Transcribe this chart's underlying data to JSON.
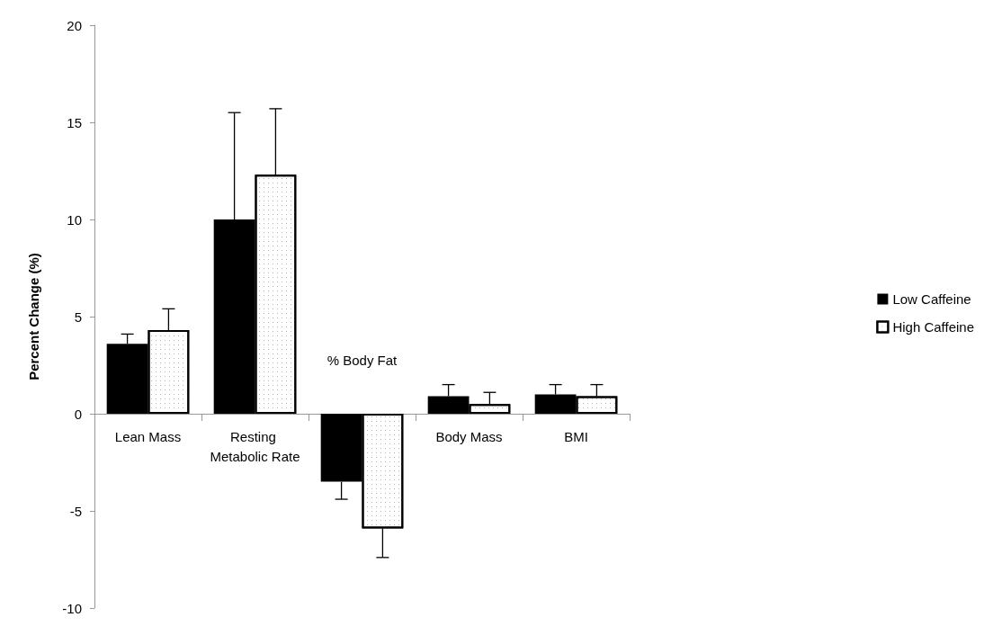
{
  "chart_data": {
    "type": "bar",
    "ylabel": "Percent Change (%)",
    "categories": [
      "Lean Mass",
      "Resting Metabolic Rate",
      "% Body Fat",
      "Body Mass",
      "BMI"
    ],
    "series": [
      {
        "name": "Low Caffeine",
        "color": "#000000",
        "values": [
          3.6,
          10.0,
          -3.5,
          0.9,
          1.0
        ],
        "errors": [
          [
            3.6,
            4.1
          ],
          [
            10.0,
            15.5
          ],
          [
            -4.4,
            -3.5
          ],
          [
            0.9,
            1.5
          ],
          [
            1.0,
            1.5
          ]
        ]
      },
      {
        "name": "High Caffeine",
        "color": "#ffffff",
        "values": [
          4.3,
          12.3,
          -5.9,
          0.5,
          0.9
        ],
        "errors": [
          [
            4.3,
            5.4
          ],
          [
            12.3,
            15.7
          ],
          [
            -7.4,
            -5.9
          ],
          [
            0.5,
            1.1
          ],
          [
            0.9,
            1.5
          ]
        ]
      }
    ],
    "ylim": [
      -10,
      20
    ],
    "yticks": [
      -10,
      -5,
      0,
      5,
      10,
      15,
      20
    ],
    "legend": "right"
  }
}
